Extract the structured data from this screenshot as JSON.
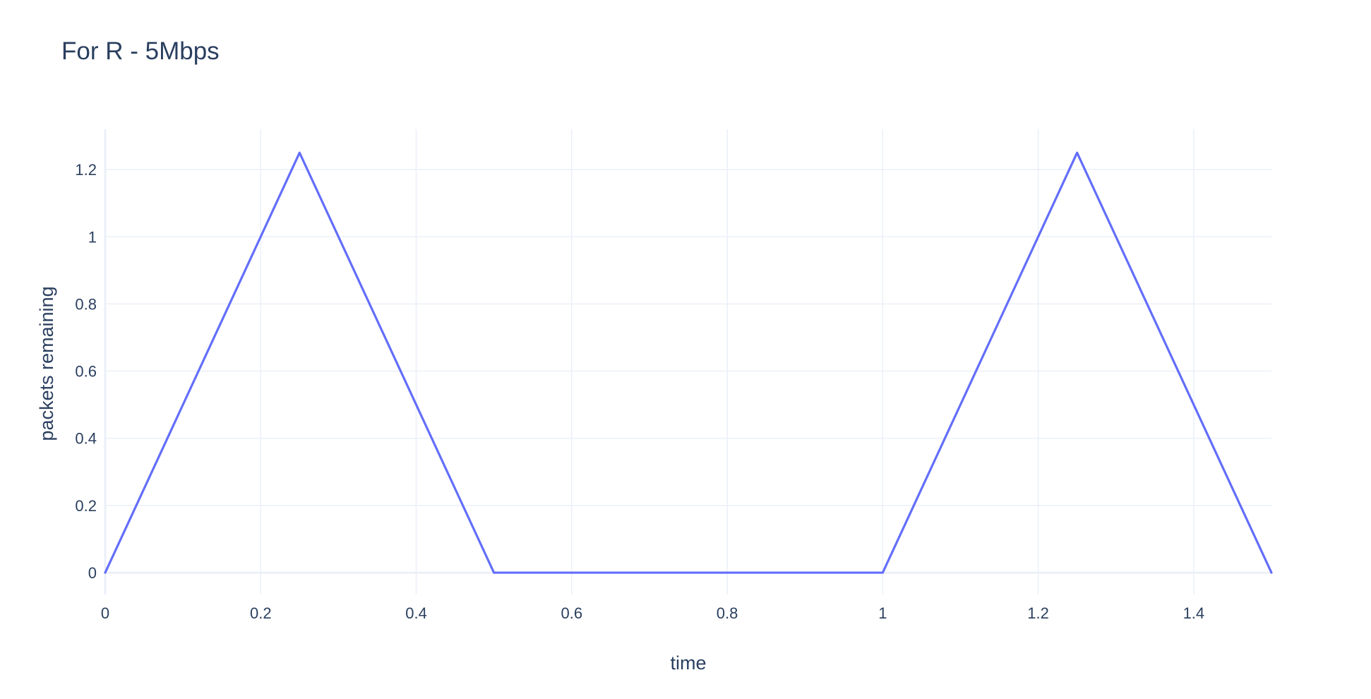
{
  "chart_data": {
    "type": "line",
    "title": "For R - 5Mbps",
    "xlabel": "time",
    "ylabel": "packets remaining",
    "xlim": [
      0,
      1.5
    ],
    "ylim": [
      -0.065,
      1.32
    ],
    "x_ticks": [
      0,
      0.2,
      0.4,
      0.6,
      0.8,
      1,
      1.2,
      1.4
    ],
    "x_tick_labels": [
      "0",
      "0.2",
      "0.4",
      "0.6",
      "0.8",
      "1",
      "1.2",
      "1.4"
    ],
    "y_ticks": [
      0,
      0.2,
      0.4,
      0.6,
      0.8,
      1,
      1.2
    ],
    "y_tick_labels": [
      "0",
      "0.2",
      "0.4",
      "0.6",
      "0.8",
      "1",
      "1.2"
    ],
    "grid": true,
    "series": [
      {
        "x": [
          0,
          0.25,
          0.5,
          1.0,
          1.25,
          1.5
        ],
        "y": [
          0,
          1.25,
          0,
          0,
          1.25,
          0
        ]
      }
    ],
    "colors": {
      "line": "#636efa",
      "grid": "#ebf0f8",
      "zeroline": "#ebf0f8",
      "text": "#2a3f5f",
      "background": "#ffffff"
    }
  }
}
